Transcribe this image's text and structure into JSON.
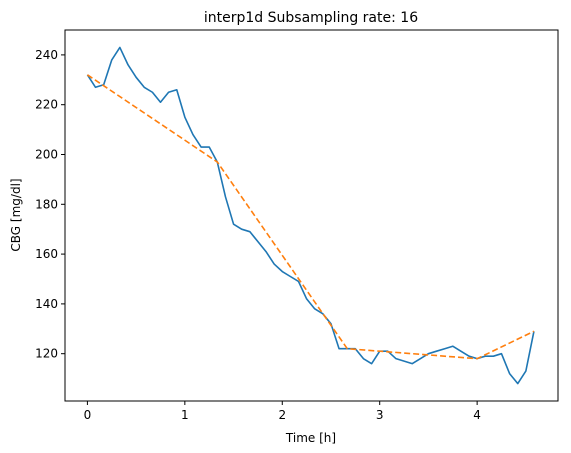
{
  "chart_data": {
    "type": "line",
    "title": "interp1d Subsampling rate: 16",
    "xlabel": "Time [h]",
    "ylabel": "CBG [mg/dl]",
    "xlim": [
      -0.23,
      4.83
    ],
    "ylim": [
      101,
      250
    ],
    "xticks": [
      0,
      1,
      2,
      3,
      4
    ],
    "yticks": [
      120,
      140,
      160,
      180,
      200,
      220,
      240
    ],
    "grid": false,
    "legend": "none",
    "series": [
      {
        "color": "#1f77b4",
        "style": "solid",
        "x": [
          0,
          0.083,
          0.167,
          0.25,
          0.333,
          0.417,
          0.5,
          0.583,
          0.667,
          0.75,
          0.833,
          0.917,
          1.0,
          1.083,
          1.167,
          1.25,
          1.333,
          1.417,
          1.5,
          1.583,
          1.667,
          1.75,
          1.833,
          1.917,
          2.0,
          2.083,
          2.167,
          2.25,
          2.333,
          2.417,
          2.5,
          2.583,
          2.667,
          2.75,
          2.833,
          2.917,
          3.0,
          3.083,
          3.167,
          3.25,
          3.333,
          3.417,
          3.5,
          3.583,
          3.667,
          3.75,
          3.833,
          3.917,
          4.0,
          4.083,
          4.167,
          4.25,
          4.333,
          4.417,
          4.5,
          4.583
        ],
        "y": [
          232,
          227,
          228,
          238,
          243,
          236,
          231,
          227,
          225,
          221,
          225,
          226,
          215,
          208,
          203,
          203,
          197,
          183,
          172,
          170,
          169,
          165,
          161,
          156,
          153,
          151,
          149,
          142,
          138,
          136,
          132,
          122,
          122,
          122,
          118,
          116,
          121,
          121,
          118,
          117,
          116,
          118,
          120,
          121,
          122,
          123,
          121,
          119,
          118,
          119,
          119,
          120,
          112,
          108,
          113,
          129
        ]
      },
      {
        "color": "#ff7f0e",
        "style": "dashed",
        "x": [
          0,
          1.333,
          2.667,
          4.0,
          4.583
        ],
        "y": [
          232,
          197,
          122,
          118,
          129
        ]
      }
    ]
  }
}
